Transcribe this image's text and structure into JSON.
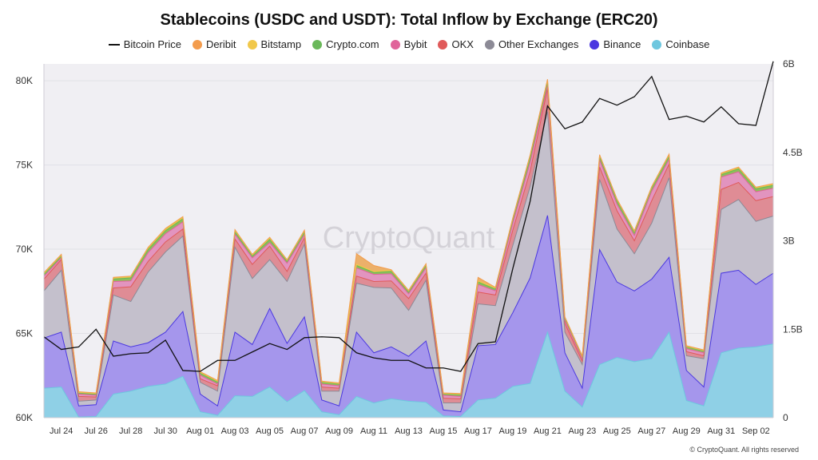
{
  "title": "Stablecoins (USDC and USDT): Total Inflow by Exchange (ERC20)",
  "legend": [
    {
      "name": "Bitcoin Price",
      "color": "#111111",
      "kind": "line"
    },
    {
      "name": "Deribit",
      "color": "#f39c4d",
      "kind": "dot"
    },
    {
      "name": "Bitstamp",
      "color": "#f1c84b",
      "kind": "dot"
    },
    {
      "name": "Crypto.com",
      "color": "#6ab85a",
      "kind": "dot"
    },
    {
      "name": "Bybit",
      "color": "#e0649a",
      "kind": "dot"
    },
    {
      "name": "OKX",
      "color": "#e05a5a",
      "kind": "dot"
    },
    {
      "name": "Other Exchanges",
      "color": "#8c8a96",
      "kind": "dot"
    },
    {
      "name": "Binance",
      "color": "#4a37e0",
      "kind": "dot"
    },
    {
      "name": "Coinbase",
      "color": "#6ec7df",
      "kind": "dot"
    }
  ],
  "watermark": "CryptoQuant",
  "footer": "© CryptoQuant. All rights reserved",
  "chart_data": {
    "type": "area",
    "stacked": true,
    "x_tick_labels": [
      "Jul 24",
      "Jul 26",
      "Jul 28",
      "Jul 30",
      "Aug 01",
      "Aug 03",
      "Aug 05",
      "Aug 07",
      "Aug 09",
      "Aug 11",
      "Aug 13",
      "Aug 15",
      "Aug 17",
      "Aug 19",
      "Aug 21",
      "Aug 23",
      "Aug 25",
      "Aug 27",
      "Aug 29",
      "Aug 31",
      "Sep 02"
    ],
    "x": [
      "Jul 23",
      "Jul 24",
      "Jul 25",
      "Jul 26",
      "Jul 27",
      "Jul 28",
      "Jul 29",
      "Jul 30",
      "Jul 31",
      "Aug 01",
      "Aug 02",
      "Aug 03",
      "Aug 04",
      "Aug 05",
      "Aug 06",
      "Aug 07",
      "Aug 08",
      "Aug 09",
      "Aug 10",
      "Aug 11",
      "Aug 12",
      "Aug 13",
      "Aug 14",
      "Aug 15",
      "Aug 16",
      "Aug 17",
      "Aug 18",
      "Aug 19",
      "Aug 20",
      "Aug 21",
      "Aug 22",
      "Aug 23",
      "Aug 24",
      "Aug 25",
      "Aug 26",
      "Aug 27",
      "Aug 28",
      "Aug 29",
      "Aug 30",
      "Aug 31",
      "Sep 01",
      "Sep 02",
      "Sep 03"
    ],
    "y_left": {
      "ticks": [
        "60K",
        "65K",
        "70K",
        "75K",
        "80K"
      ],
      "range": [
        60000,
        81000
      ]
    },
    "y_right": {
      "ticks": [
        "0",
        "1.5B",
        "3B",
        "4.5B",
        "6B"
      ],
      "range": [
        0,
        6000000000
      ]
    },
    "grid": true,
    "legend_position": "top-center",
    "series_cumulative_B": [
      {
        "name": "Coinbase",
        "color": "#8fd0e6",
        "values": [
          0.5,
          0.52,
          0.01,
          0.02,
          0.4,
          0.45,
          0.53,
          0.57,
          0.7,
          0.1,
          0.04,
          0.37,
          0.36,
          0.52,
          0.27,
          0.46,
          0.1,
          0.05,
          0.36,
          0.25,
          0.32,
          0.28,
          0.26,
          0.03,
          0.02,
          0.3,
          0.33,
          0.53,
          0.58,
          1.45,
          0.45,
          0.18,
          0.9,
          1.02,
          0.95,
          1.0,
          1.45,
          0.29,
          0.2,
          1.1,
          1.18,
          1.2,
          1.25
        ]
      },
      {
        "name": "Binance",
        "color": "#a596ec",
        "values": [
          1.35,
          1.45,
          0.2,
          0.22,
          1.3,
          1.2,
          1.27,
          1.45,
          1.8,
          0.4,
          0.2,
          1.45,
          1.24,
          1.85,
          1.26,
          1.71,
          0.3,
          0.2,
          1.45,
          1.1,
          1.2,
          1.04,
          1.3,
          0.13,
          0.1,
          1.22,
          1.24,
          1.78,
          2.37,
          3.43,
          1.1,
          0.5,
          2.85,
          2.3,
          2.15,
          2.35,
          2.72,
          0.8,
          0.52,
          2.45,
          2.5,
          2.26,
          2.45
        ]
      },
      {
        "name": "Other Exchanges",
        "color": "#c4c0cc",
        "values": [
          2.15,
          2.5,
          0.28,
          0.3,
          2.08,
          1.97,
          2.47,
          2.81,
          3.08,
          0.6,
          0.45,
          2.89,
          2.36,
          2.68,
          2.31,
          2.94,
          0.45,
          0.45,
          2.28,
          2.21,
          2.2,
          1.82,
          2.33,
          0.25,
          0.25,
          1.93,
          1.9,
          2.92,
          3.92,
          5.19,
          1.45,
          0.9,
          4.04,
          3.2,
          2.78,
          3.3,
          4.07,
          1.05,
          1.0,
          3.53,
          3.7,
          3.33,
          3.42
        ]
      },
      {
        "name": "OKX",
        "color": "#df8c95",
        "values": [
          2.35,
          2.68,
          0.36,
          0.35,
          2.2,
          2.22,
          2.65,
          2.98,
          3.2,
          0.66,
          0.54,
          3.03,
          2.6,
          2.91,
          2.48,
          3.05,
          0.52,
          0.5,
          2.4,
          2.31,
          2.32,
          2.02,
          2.45,
          0.33,
          0.32,
          2.13,
          2.08,
          3.18,
          4.18,
          5.58,
          1.6,
          0.96,
          4.25,
          3.51,
          3.0,
          3.68,
          4.3,
          1.12,
          1.05,
          3.87,
          3.99,
          3.68,
          3.75
        ]
      },
      {
        "name": "Bybit",
        "color": "#e294bf",
        "values": [
          2.4,
          2.71,
          0.4,
          0.38,
          2.31,
          2.32,
          2.8,
          3.12,
          3.32,
          0.72,
          0.57,
          3.11,
          2.71,
          2.97,
          2.62,
          3.1,
          0.57,
          0.54,
          2.54,
          2.43,
          2.44,
          2.1,
          2.54,
          0.38,
          0.36,
          2.26,
          2.15,
          3.3,
          4.33,
          5.63,
          1.65,
          1.0,
          4.37,
          3.62,
          3.09,
          3.84,
          4.38,
          1.17,
          1.1,
          4.08,
          4.17,
          3.83,
          3.89
        ]
      },
      {
        "name": "Crypto.com",
        "color": "#8dbf5a",
        "values": [
          2.43,
          2.74,
          0.42,
          0.4,
          2.35,
          2.37,
          2.85,
          3.17,
          3.37,
          0.75,
          0.6,
          3.15,
          2.74,
          3.02,
          2.65,
          3.15,
          0.6,
          0.57,
          2.58,
          2.46,
          2.48,
          2.13,
          2.58,
          0.4,
          0.39,
          2.3,
          2.18,
          3.35,
          4.4,
          5.69,
          1.68,
          1.03,
          4.42,
          3.67,
          3.14,
          3.89,
          4.43,
          1.2,
          1.13,
          4.12,
          4.22,
          3.88,
          3.94
        ]
      },
      {
        "name": "Bitstamp",
        "color": "#d8c548",
        "values": [
          2.45,
          2.76,
          0.43,
          0.41,
          2.37,
          2.39,
          2.88,
          3.2,
          3.4,
          0.77,
          0.62,
          3.18,
          2.76,
          3.05,
          2.67,
          3.17,
          0.61,
          0.58,
          2.6,
          2.48,
          2.5,
          2.15,
          2.6,
          0.41,
          0.4,
          2.32,
          2.2,
          3.38,
          4.45,
          5.73,
          1.7,
          1.04,
          4.45,
          3.7,
          3.16,
          3.91,
          4.46,
          1.21,
          1.14,
          4.14,
          4.24,
          3.9,
          3.96
        ]
      },
      {
        "name": "Deribit",
        "color": "#ecb06a",
        "values": [
          2.46,
          2.77,
          0.44,
          0.42,
          2.38,
          2.4,
          2.89,
          3.21,
          3.41,
          0.78,
          0.63,
          3.19,
          2.77,
          3.06,
          2.68,
          3.18,
          0.62,
          0.59,
          2.78,
          2.58,
          2.51,
          2.16,
          2.61,
          0.42,
          0.41,
          2.38,
          2.21,
          3.39,
          4.46,
          5.74,
          1.71,
          1.05,
          4.46,
          3.71,
          3.17,
          3.92,
          4.47,
          1.22,
          1.15,
          4.15,
          4.25,
          3.91,
          3.97
        ]
      }
    ],
    "bitcoin_price": [
      64800,
      64050,
      64200,
      65250,
      63650,
      63800,
      63850,
      64600,
      62800,
      62750,
      63400,
      63400,
      63900,
      64400,
      64050,
      64750,
      64800,
      64750,
      63850,
      63550,
      63400,
      63400,
      62950,
      62950,
      62750,
      64400,
      64500,
      68850,
      72850,
      78500,
      77150,
      77550,
      78950,
      78550,
      79050,
      80250,
      77700,
      77900,
      77550,
      78450,
      77450,
      77350,
      81150
    ]
  }
}
